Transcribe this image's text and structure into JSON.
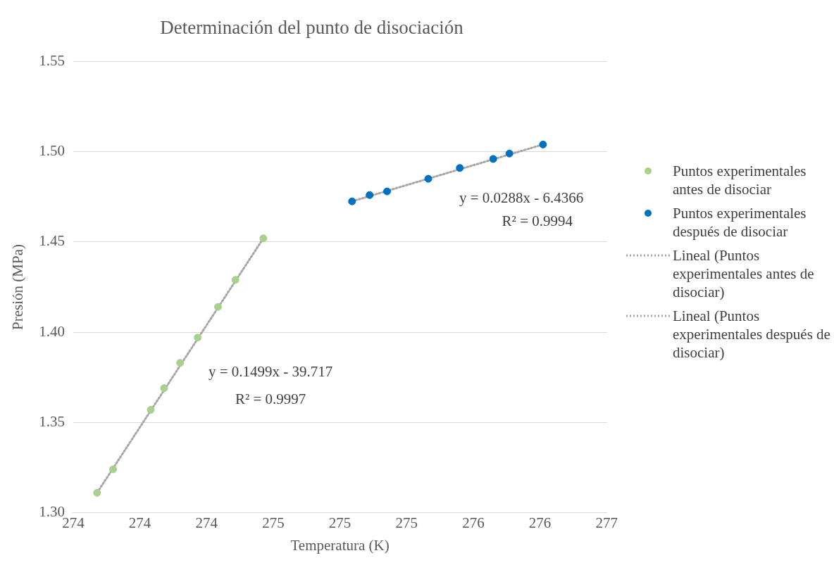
{
  "chart_data": {
    "type": "scatter",
    "title": "Determinación del punto de disociación",
    "xlabel": "Temperatura (K)",
    "ylabel": "Presión (MPa)",
    "xlim": [
      273.5,
      276.5
    ],
    "xticks": [
      {
        "value": 273.5,
        "label": "274"
      },
      {
        "value": 273.875,
        "label": "274"
      },
      {
        "value": 274.25,
        "label": "274"
      },
      {
        "value": 274.625,
        "label": "275"
      },
      {
        "value": 275,
        "label": "275"
      },
      {
        "value": 275.375,
        "label": "275"
      },
      {
        "value": 275.75,
        "label": "276"
      },
      {
        "value": 276.125,
        "label": "276"
      },
      {
        "value": 276.5,
        "label": "277"
      }
    ],
    "ylim": [
      1.3,
      1.55
    ],
    "yticks": [
      {
        "value": 1.3,
        "label": "1.30"
      },
      {
        "value": 1.35,
        "label": "1.35"
      },
      {
        "value": 1.4,
        "label": "1.40"
      },
      {
        "value": 1.45,
        "label": "1.45"
      },
      {
        "value": 1.5,
        "label": "1.50"
      },
      {
        "value": 1.55,
        "label": "1.55"
      }
    ],
    "grid": "y",
    "legend": "right",
    "marker": "circle",
    "series": [
      {
        "name": "Puntos experimentales antes de disociar",
        "type": "scatter",
        "color": "#a9d18e",
        "x": [
          273.634,
          273.724,
          273.936,
          274.011,
          274.101,
          274.2,
          274.314,
          274.412,
          274.569
        ],
        "values": [
          1.311,
          1.324,
          1.357,
          1.369,
          1.383,
          1.397,
          1.414,
          1.429,
          1.452
        ]
      },
      {
        "name": "Puntos experimentales después de disociar",
        "type": "scatter",
        "color": "#0070c0",
        "x": [
          275.068,
          275.167,
          275.265,
          275.497,
          275.674,
          275.862,
          275.953,
          276.142
        ],
        "values": [
          1.4725,
          1.476,
          1.478,
          1.485,
          1.491,
          1.496,
          1.499,
          1.504
        ]
      },
      {
        "name": "Lineal (Puntos experimentales antes de disociar)",
        "type": "line",
        "line_style": "dotted",
        "marker": "none",
        "color": "#a6a6a6",
        "x": [
          273.634,
          274.569
        ],
        "values": [
          1.311,
          1.452
        ]
      },
      {
        "name": "Lineal (Puntos experimentales después de disociar)",
        "type": "line",
        "line_style": "dotted",
        "marker": "none",
        "color": "#a6a6a6",
        "x": [
          275.068,
          276.142
        ],
        "values": [
          1.4725,
          1.504
        ]
      }
    ],
    "annotations": [
      "y = 0.1499x - 39.717",
      "R² = 0.9997",
      "y = 0.0288x - 6.4366",
      "R² = 0.9994"
    ]
  }
}
